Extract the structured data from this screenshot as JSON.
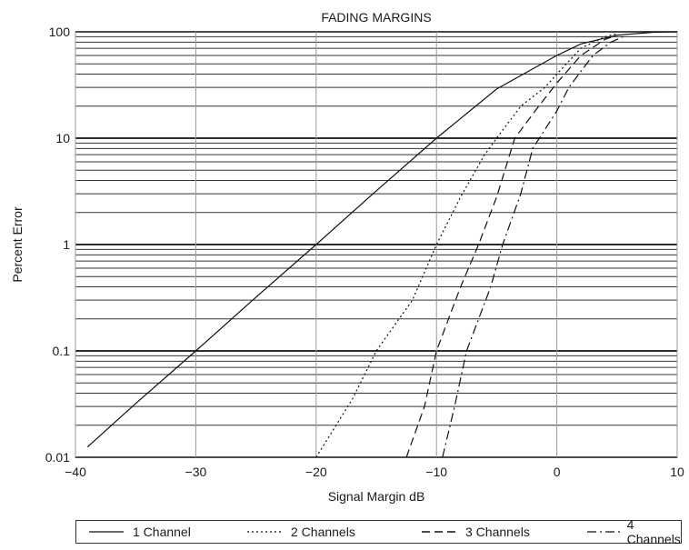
{
  "chart_data": {
    "type": "line",
    "title": "FADING MARGINS",
    "xlabel": "Signal Margin dB",
    "ylabel": "Percent Error",
    "xlim": [
      -40,
      10
    ],
    "ylim": [
      0.01,
      100
    ],
    "yscale": "log",
    "grid": true,
    "x_ticks": [
      "−40",
      "−30",
      "−20",
      "−10",
      "0",
      "10"
    ],
    "y_ticks": [
      "0.01",
      "0.1",
      "1",
      "10",
      "100"
    ],
    "legend_position": "bottom",
    "series": [
      {
        "name": "1 Channel",
        "style": "solid",
        "points": [
          [
            -39,
            0.0125
          ],
          [
            -35,
            0.032
          ],
          [
            -30,
            0.1
          ],
          [
            -25,
            0.32
          ],
          [
            -20,
            1.0
          ],
          [
            -15,
            3.2
          ],
          [
            -10,
            10
          ],
          [
            -5,
            29
          ],
          [
            0,
            60
          ],
          [
            2,
            77
          ],
          [
            5,
            93
          ],
          [
            8,
            99
          ],
          [
            10,
            100
          ]
        ]
      },
      {
        "name": "2 Channels",
        "style": "dotted",
        "points": [
          [
            -20,
            0.01
          ],
          [
            -17,
            0.035
          ],
          [
            -15,
            0.1
          ],
          [
            -12,
            0.3
          ],
          [
            -10,
            1.0
          ],
          [
            -8,
            2.8
          ],
          [
            -6,
            7
          ],
          [
            -5,
            10
          ],
          [
            -3,
            20
          ],
          [
            -1,
            30
          ],
          [
            0,
            40
          ],
          [
            2,
            70
          ],
          [
            4,
            90
          ],
          [
            5,
            96
          ]
        ]
      },
      {
        "name": "3 Channels",
        "style": "long-dash",
        "points": [
          [
            -12.5,
            0.01
          ],
          [
            -11,
            0.03
          ],
          [
            -10,
            0.1
          ],
          [
            -8,
            0.4
          ],
          [
            -6.5,
            1.0
          ],
          [
            -5,
            2.8
          ],
          [
            -3.5,
            10
          ],
          [
            -1.5,
            20
          ],
          [
            0,
            33
          ],
          [
            2,
            60
          ],
          [
            4,
            85
          ],
          [
            5,
            93
          ]
        ]
      },
      {
        "name": "4 Channels",
        "style": "dash-dot",
        "points": [
          [
            -9.5,
            0.01
          ],
          [
            -8.5,
            0.03
          ],
          [
            -7.5,
            0.1
          ],
          [
            -5.5,
            0.4
          ],
          [
            -4.5,
            1.0
          ],
          [
            -3,
            3
          ],
          [
            -2,
            8
          ],
          [
            -1,
            12
          ],
          [
            0,
            18
          ],
          [
            1,
            30
          ],
          [
            3,
            60
          ],
          [
            4.5,
            80
          ],
          [
            5.5,
            90
          ]
        ]
      }
    ]
  }
}
